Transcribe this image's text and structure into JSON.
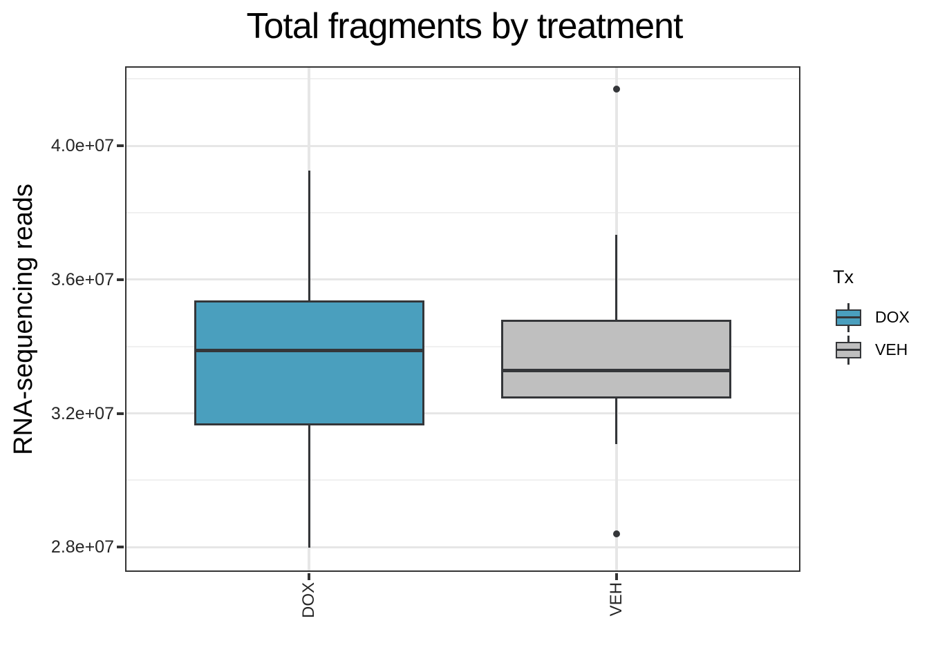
{
  "chart_data": {
    "type": "boxplot",
    "title": "Total fragments by treatment",
    "xlabel": "",
    "ylabel": "RNA-sequencing reads",
    "categories": [
      "DOX",
      "VEH"
    ],
    "series": [
      {
        "name": "DOX",
        "fill": "#4a9fbe",
        "whisker_low": 27980000,
        "q1": 31640000,
        "median": 33870000,
        "q3": 35370000,
        "whisker_high": 39260000,
        "outliers": []
      },
      {
        "name": "VEH",
        "fill": "#bfbfbf",
        "whisker_low": 31080000,
        "q1": 32440000,
        "median": 33290000,
        "q3": 34800000,
        "whisker_high": 37340000,
        "outliers": [
          41690000,
          28390000
        ]
      }
    ],
    "ylim": [
      27260000,
      42380000
    ],
    "y_major_ticks": [
      {
        "value": 40000000,
        "label": "4.0e+07"
      },
      {
        "value": 36000000,
        "label": "3.6e+07"
      },
      {
        "value": 32000000,
        "label": "3.2e+07"
      },
      {
        "value": 28000000,
        "label": "2.8e+07"
      }
    ],
    "y_minor_ticks": [
      42000000,
      38000000,
      34000000,
      30000000
    ],
    "grid": "horizontal major+minor gridlines, vertical gridline at each category",
    "legend": {
      "title": "Tx",
      "position": "right"
    },
    "box_width_fraction": 0.75
  },
  "colors": {
    "dox_fill": "#4a9fbe",
    "veh_fill": "#bfbfbf",
    "stroke": "#343639",
    "axis": "#333333",
    "grid_major": "#e6e6e6",
    "grid_minor": "#f0f0f0",
    "tick_text": "#262626",
    "title_text": "#000000",
    "background": "#ffffff"
  }
}
